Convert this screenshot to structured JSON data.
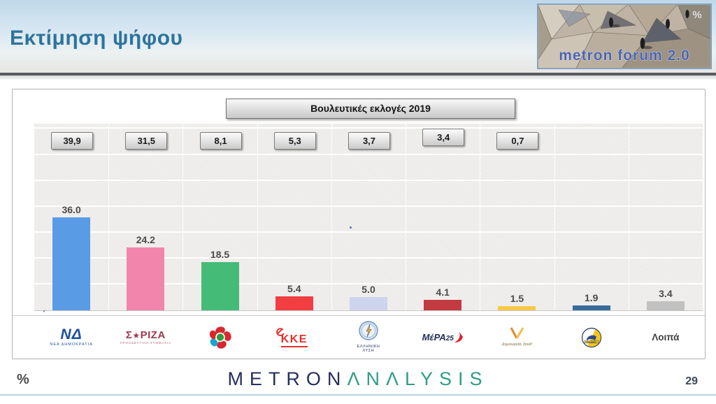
{
  "header": {
    "title": "Εκτίμηση ψήφου",
    "brand_image": {
      "text": "metron forum 2.0",
      "percent_mark": "%"
    }
  },
  "chart_data": {
    "type": "bar",
    "title": "Εκτίμηση ψήφου",
    "comparison_box_title": "Βουλευτικές εκλογές 2019",
    "unit": "%",
    "ylim": [
      0,
      72
    ],
    "grid_step": 10,
    "grid": true,
    "legend_position": "bottom-logos",
    "categories": [
      "ΝΕΑ ΔΗΜΟΚΡΑΤΙΑ",
      "ΣΥΡΙΖΑ",
      "ΠΑΣΟΚ/ΚΙΝΑΛ",
      "ΚΚΕ",
      "ΕΛΛΗΝΙΚΗ ΛΥΣΗ",
      "ΜέΡΑ25",
      "Δημιουργία Ξανά",
      "ΕΛΛΗΝΕΣ",
      "Λοιπά"
    ],
    "series": [
      {
        "name": "Εκτίμηση ψήφου",
        "values": [
          36.0,
          24.2,
          18.5,
          5.4,
          5.0,
          4.1,
          1.5,
          1.9,
          3.4
        ],
        "labels": [
          "36.0",
          "24.2",
          "18.5",
          "5.4",
          "5.0",
          "4.1",
          "1.5",
          "1.9",
          "3.4"
        ]
      },
      {
        "name": "Βουλευτικές εκλογές 2019",
        "values": [
          39.9,
          31.5,
          8.1,
          5.3,
          3.7,
          3.4,
          0.7,
          null,
          null
        ],
        "labels": [
          "39,9",
          "31,5",
          "8,1",
          "5,3",
          "3,7",
          "3,4",
          "0,7",
          null,
          null
        ]
      }
    ],
    "bar_colors": [
      "#5A9BE6",
      "#F285AC",
      "#45BB78",
      "#F23D41",
      "#CDD4EE",
      "#C23B40",
      "#F7C94B",
      "#3A6B9E",
      "#C1C1C1"
    ]
  },
  "parties": [
    {
      "logo": "nd",
      "text": "ΝΔ",
      "caption": "ΝΕΑ ΔΗΜΟΚΡΑΤΙΑ"
    },
    {
      "logo": "syriza",
      "text": "ΣΥΡΙΖΑ",
      "caption": "ΠΡΟΟΔΕΥΤΙΚΗ ΣΥΜΜΑΧΙΑ"
    },
    {
      "logo": "pasok",
      "text": "",
      "caption": ""
    },
    {
      "logo": "kke",
      "text": "ΚΚΕ",
      "caption": ""
    },
    {
      "logo": "elysi",
      "text": "",
      "caption": "ΕΛΛΗΝΙΚΗ ΛΥΣΗ"
    },
    {
      "logo": "mera25",
      "text": "ΜέΡΑ25",
      "caption": ""
    },
    {
      "logo": "dimiourgia",
      "text": "",
      "caption": "Δημιουργία, ξανά!"
    },
    {
      "logo": "ellines",
      "text": "",
      "caption": "ΕΛΛΗΝΕΣ"
    },
    {
      "logo": "loipa",
      "text": "Λοιπά",
      "caption": ""
    }
  ],
  "footer": {
    "brand_metron": "METRON",
    "brand_analysis": "ΛNΛLYSIS",
    "percent": "%",
    "page": "29"
  },
  "colors": {
    "title_teal": "#2E749C",
    "brand_navy": "#262E5C",
    "brand_teal": "#2F9E85",
    "plot_bg": "#F0EFED"
  }
}
